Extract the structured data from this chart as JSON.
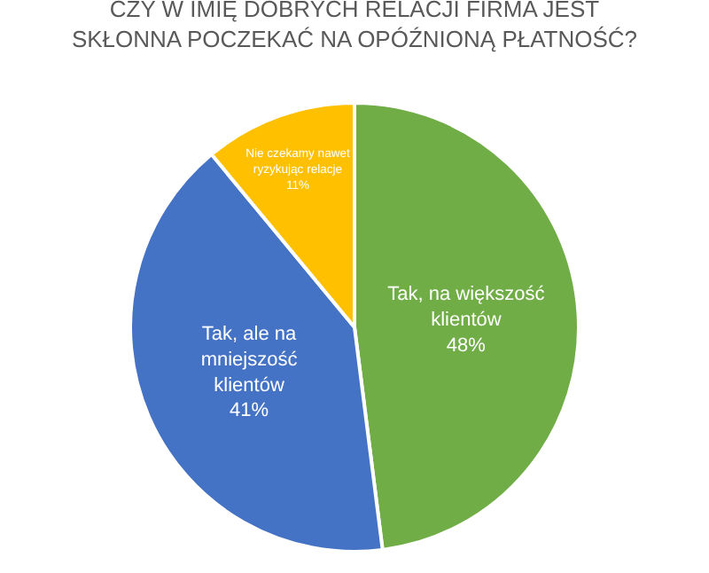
{
  "chart_data": {
    "type": "pie",
    "title": "CZY W IMIĘ DOBRYCH RELACJI FIRMA JEST SKŁONNA POCZEKAĆ NA OPÓŹNIONĄ PŁATNOŚĆ?",
    "categories": [
      "Tak, na większość klientów",
      "Tak, ale na mniejszość klientów",
      "Nie czekamy nawet ryzykując relacje"
    ],
    "values": [
      48,
      41,
      11
    ],
    "colors": [
      "#70ad47",
      "#4472c4",
      "#ffc000"
    ],
    "value_labels": [
      "48%",
      "41%",
      "11%"
    ],
    "legend": false
  }
}
